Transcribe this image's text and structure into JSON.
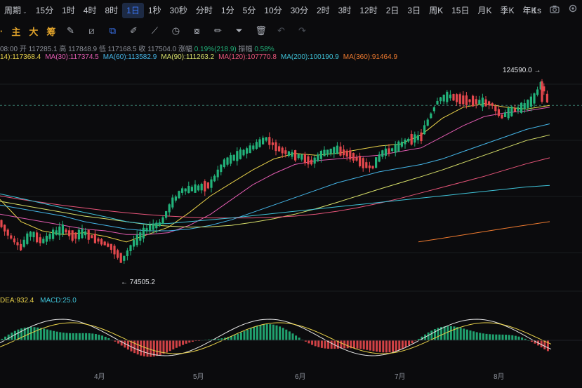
{
  "toolbar": {
    "period_label": "周期",
    "periods": [
      "15分",
      "1时",
      "4时",
      "8时",
      "1日",
      "1秒",
      "30秒",
      "分时",
      "1分",
      "5分",
      "10分",
      "30分",
      "2时",
      "3时",
      "12时",
      "2日",
      "3日",
      "周K",
      "15日",
      "月K",
      "季K",
      "年K"
    ],
    "active_period": "1日",
    "speed": "1s"
  },
  "tools": {
    "main_label": "主",
    "big_label": "大",
    "chip_label": "筹",
    "icons": [
      "edit-icon",
      "ruler-icon",
      "copy-icon",
      "pen-icon",
      "line-icon",
      "clock-icon",
      "measure-icon",
      "brush-icon",
      "filter-icon",
      "trash-icon",
      "undo-icon",
      "redo-icon"
    ]
  },
  "ohlc": {
    "time": "08:00",
    "open_label": "开",
    "open": "117285.1",
    "high_label": "高",
    "high": "117848.9",
    "low_label": "低",
    "low": "117168.5",
    "close_label": "收",
    "close": "117504.0",
    "change_label": "涨幅",
    "change": "0.19%(218.9)",
    "amp_label": "振幅",
    "amp": "0.58%"
  },
  "ma_legend": [
    {
      "label": "14):117368.4",
      "color": "#e9d24a"
    },
    {
      "label": "MA(30):117374.5",
      "color": "#e15bb0"
    },
    {
      "label": "MA(60):113582.9",
      "color": "#45b6e8"
    },
    {
      "label": "MA(90):111263.2",
      "color": "#d8e06a"
    },
    {
      "label": "MA(120):107770.8",
      "color": "#e8557a"
    },
    {
      "label": "MA(200):100190.9",
      "color": "#3fc3d8"
    },
    {
      "label": "MA(360):91464.9",
      "color": "#ee7a2f"
    }
  ],
  "annotations": {
    "high_mark": "124590.0",
    "low_mark": "74505.2"
  },
  "macd_legend": {
    "dea": "DEA:932.4",
    "macd": "MACD:25.0",
    "dea_color": "#e9d24a",
    "macd_color": "#3fc3d8"
  },
  "x_axis": [
    "4月",
    "5月",
    "6月",
    "7月",
    "8月"
  ],
  "colors": {
    "up": "#22b27a",
    "down": "#e5484d",
    "accent": "#3d7bff",
    "brand": "#e2a42b",
    "grid": "#1a1c20"
  },
  "chart_data": {
    "type": "candlestick",
    "title": "",
    "ylim": [
      70000,
      128000
    ],
    "xlabel": "",
    "ylabel": "",
    "series_ma": [
      {
        "name": "MA(14)",
        "color": "#e9d24a",
        "points": [
          [
            0,
            92000
          ],
          [
            30,
            86000
          ],
          [
            60,
            83500
          ],
          [
            90,
            82500
          ],
          [
            120,
            83000
          ],
          [
            150,
            82000
          ],
          [
            180,
            80500
          ],
          [
            210,
            82500
          ],
          [
            240,
            84500
          ],
          [
            270,
            88500
          ],
          [
            300,
            93000
          ],
          [
            330,
            96500
          ],
          [
            360,
            100000
          ],
          [
            390,
            103000
          ],
          [
            420,
            104500
          ],
          [
            450,
            104000
          ],
          [
            480,
            104500
          ],
          [
            510,
            105500
          ],
          [
            540,
            106500
          ],
          [
            570,
            107000
          ],
          [
            600,
            109500
          ],
          [
            630,
            114000
          ],
          [
            660,
            117000
          ],
          [
            690,
            118000
          ],
          [
            720,
            117000
          ],
          [
            750,
            116500
          ],
          [
            783,
            117500
          ]
        ]
      },
      {
        "name": "MA(30)",
        "color": "#e15bb0",
        "points": [
          [
            0,
            88000
          ],
          [
            30,
            87000
          ],
          [
            60,
            86000
          ],
          [
            90,
            85000
          ],
          [
            120,
            84000
          ],
          [
            150,
            83500
          ],
          [
            180,
            82500
          ],
          [
            210,
            82500
          ],
          [
            240,
            83000
          ],
          [
            270,
            85000
          ],
          [
            300,
            88000
          ],
          [
            330,
            92000
          ],
          [
            360,
            96000
          ],
          [
            390,
            99000
          ],
          [
            420,
            101500
          ],
          [
            450,
            102500
          ],
          [
            480,
            103000
          ],
          [
            510,
            103500
          ],
          [
            540,
            104000
          ],
          [
            570,
            105000
          ],
          [
            600,
            106000
          ],
          [
            630,
            109000
          ],
          [
            660,
            112000
          ],
          [
            690,
            114500
          ],
          [
            720,
            115500
          ],
          [
            750,
            116000
          ],
          [
            783,
            117000
          ]
        ]
      },
      {
        "name": "MA(60)",
        "color": "#45b6e8",
        "points": [
          [
            0,
            90500
          ],
          [
            30,
            89500
          ],
          [
            60,
            88500
          ],
          [
            90,
            87500
          ],
          [
            120,
            86000
          ],
          [
            150,
            85000
          ],
          [
            180,
            84000
          ],
          [
            210,
            83500
          ],
          [
            240,
            83500
          ],
          [
            270,
            84000
          ],
          [
            300,
            85000
          ],
          [
            330,
            86500
          ],
          [
            360,
            88500
          ],
          [
            390,
            90500
          ],
          [
            420,
            92500
          ],
          [
            450,
            94500
          ],
          [
            480,
            96500
          ],
          [
            510,
            98000
          ],
          [
            540,
            99500
          ],
          [
            570,
            100500
          ],
          [
            600,
            101500
          ],
          [
            630,
            103000
          ],
          [
            660,
            105000
          ],
          [
            690,
            107000
          ],
          [
            720,
            109000
          ],
          [
            750,
            111000
          ],
          [
            783,
            112500
          ]
        ]
      },
      {
        "name": "MA(90)",
        "color": "#d8e06a",
        "points": [
          [
            0,
            91500
          ],
          [
            30,
            90500
          ],
          [
            60,
            89500
          ],
          [
            90,
            88500
          ],
          [
            120,
            87500
          ],
          [
            150,
            86800
          ],
          [
            180,
            86000
          ],
          [
            210,
            85200
          ],
          [
            240,
            84800
          ],
          [
            270,
            84500
          ],
          [
            300,
            84600
          ],
          [
            330,
            85000
          ],
          [
            360,
            85800
          ],
          [
            390,
            86800
          ],
          [
            420,
            88000
          ],
          [
            450,
            89500
          ],
          [
            480,
            91200
          ],
          [
            510,
            93000
          ],
          [
            540,
            94800
          ],
          [
            570,
            96500
          ],
          [
            600,
            98200
          ],
          [
            630,
            100000
          ],
          [
            660,
            102000
          ],
          [
            690,
            104000
          ],
          [
            720,
            106000
          ],
          [
            750,
            108000
          ],
          [
            783,
            109500
          ]
        ]
      },
      {
        "name": "MA(120)",
        "color": "#e8557a",
        "points": [
          [
            0,
            93000
          ],
          [
            30,
            92000
          ],
          [
            60,
            91200
          ],
          [
            90,
            90400
          ],
          [
            120,
            89700
          ],
          [
            150,
            89000
          ],
          [
            180,
            88400
          ],
          [
            210,
            87900
          ],
          [
            240,
            87500
          ],
          [
            270,
            87200
          ],
          [
            300,
            87000
          ],
          [
            330,
            87000
          ],
          [
            360,
            87000
          ],
          [
            390,
            87200
          ],
          [
            420,
            87500
          ],
          [
            450,
            88000
          ],
          [
            480,
            88800
          ],
          [
            510,
            89800
          ],
          [
            540,
            91000
          ],
          [
            570,
            92300
          ],
          [
            600,
            93800
          ],
          [
            630,
            95300
          ],
          [
            660,
            96800
          ],
          [
            690,
            98300
          ],
          [
            720,
            100000
          ],
          [
            750,
            101700
          ],
          [
            783,
            103300
          ]
        ]
      },
      {
        "name": "MA(200)",
        "color": "#3fc3d8",
        "points": [
          [
            0,
            93500
          ],
          [
            30,
            92300
          ],
          [
            60,
            91000
          ],
          [
            90,
            89700
          ],
          [
            120,
            88500
          ],
          [
            150,
            87300
          ],
          [
            180,
            86000
          ],
          [
            210,
            85300
          ],
          [
            240,
            85500
          ],
          [
            270,
            86000
          ],
          [
            300,
            86500
          ],
          [
            330,
            87000
          ],
          [
            360,
            87600
          ],
          [
            390,
            88200
          ],
          [
            420,
            88800
          ],
          [
            450,
            89400
          ],
          [
            480,
            90000
          ],
          [
            510,
            90600
          ],
          [
            540,
            91200
          ],
          [
            570,
            91800
          ],
          [
            600,
            92400
          ],
          [
            630,
            93000
          ],
          [
            660,
            93600
          ],
          [
            690,
            94200
          ],
          [
            720,
            94800
          ],
          [
            750,
            95400
          ],
          [
            783,
            95800
          ]
        ]
      },
      {
        "name": "MA(360)",
        "color": "#ee7a2f",
        "points": [
          [
            596,
            80500
          ],
          [
            620,
            81200
          ],
          [
            650,
            82100
          ],
          [
            680,
            83000
          ],
          [
            710,
            83900
          ],
          [
            740,
            84800
          ],
          [
            783,
            86000
          ]
        ]
      }
    ]
  }
}
